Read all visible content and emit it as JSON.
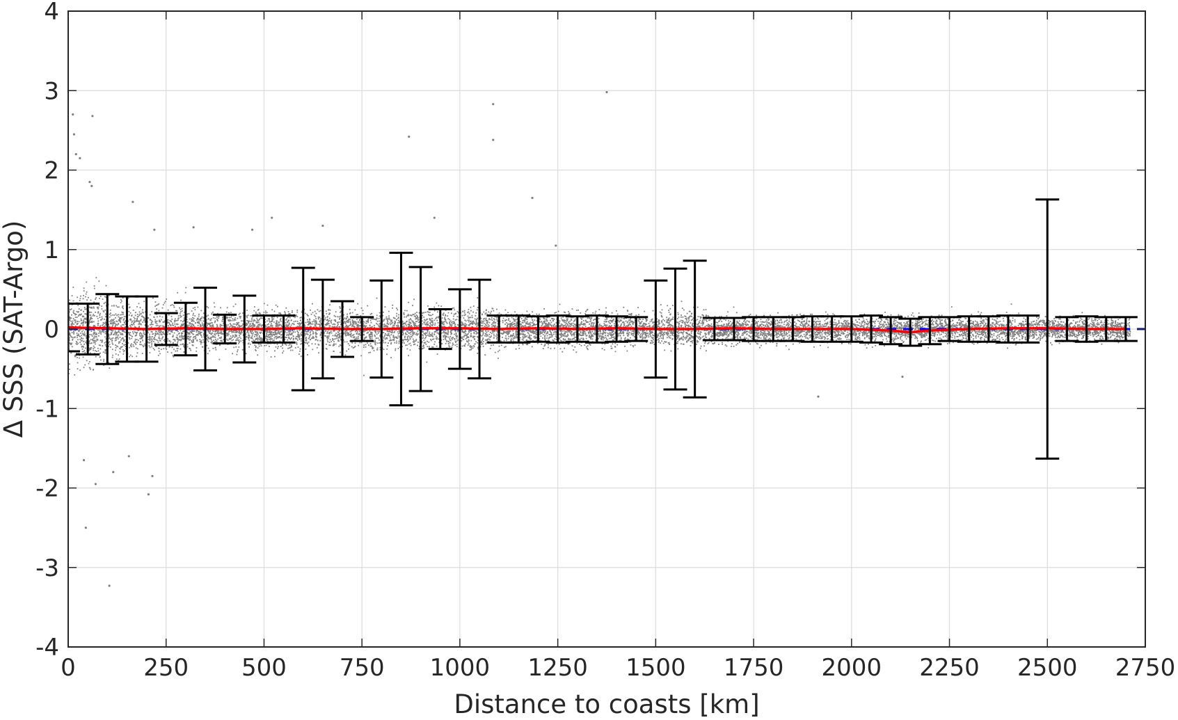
{
  "chart_data": {
    "type": "scatter",
    "title": "",
    "xlabel": "Distance to coasts [km]",
    "ylabel": "Δ SSS (SAT-Argo)",
    "xlim": [
      0,
      2750
    ],
    "ylim": [
      -4,
      4
    ],
    "xticks": [
      0,
      250,
      500,
      750,
      1000,
      1250,
      1500,
      1750,
      2000,
      2250,
      2500,
      2750
    ],
    "yticks": [
      -4,
      -3,
      -2,
      -1,
      0,
      1,
      2,
      3,
      4
    ],
    "xtick_labels": [
      "0",
      "250",
      "500",
      "750",
      "1000",
      "1250",
      "1500",
      "1750",
      "2000",
      "2250",
      "2500",
      "2750"
    ],
    "ytick_labels": [
      "-4",
      "-3",
      "-2",
      "-1",
      "0",
      "1",
      "2",
      "3",
      "4"
    ],
    "grid": true,
    "legend": "none",
    "colors": {
      "scatter": "#808080",
      "mean_line": "#ff0000",
      "zero_line": "#0000ff",
      "error_bars": "#000000"
    },
    "scatter_summary": {
      "note_points": "dense cloud of individual matchups around zero, spread largest near the coast",
      "outliers": [
        {
          "x": 12,
          "y": 2.7
        },
        {
          "x": 15,
          "y": 2.45
        },
        {
          "x": 20,
          "y": 2.2
        },
        {
          "x": 30,
          "y": 2.15
        },
        {
          "x": 62,
          "y": 2.68
        },
        {
          "x": 55,
          "y": 1.85
        },
        {
          "x": 60,
          "y": 1.8
        },
        {
          "x": 165,
          "y": 1.6
        },
        {
          "x": 220,
          "y": 1.25
        },
        {
          "x": 320,
          "y": 1.28
        },
        {
          "x": 470,
          "y": 1.25
        },
        {
          "x": 520,
          "y": 1.4
        },
        {
          "x": 650,
          "y": 1.3
        },
        {
          "x": 870,
          "y": 2.42
        },
        {
          "x": 935,
          "y": 1.4
        },
        {
          "x": 1085,
          "y": 2.83
        },
        {
          "x": 1085,
          "y": 2.38
        },
        {
          "x": 1185,
          "y": 1.65
        },
        {
          "x": 1245,
          "y": 1.05
        },
        {
          "x": 1375,
          "y": 2.98
        },
        {
          "x": 45,
          "y": -2.5
        },
        {
          "x": 70,
          "y": -1.95
        },
        {
          "x": 105,
          "y": -3.23
        },
        {
          "x": 115,
          "y": -1.8
        },
        {
          "x": 205,
          "y": -2.08
        },
        {
          "x": 215,
          "y": -1.85
        },
        {
          "x": 40,
          "y": -1.65
        },
        {
          "x": 155,
          "y": -1.6
        },
        {
          "x": 1915,
          "y": -0.85
        },
        {
          "x": 2130,
          "y": -0.6
        }
      ]
    },
    "series": [
      {
        "type": "mean_line",
        "x": [
          0,
          100,
          200,
          300,
          400,
          500,
          600,
          700,
          800,
          900,
          1000,
          1100,
          1200,
          1300,
          1400,
          1500,
          1600,
          1700,
          1800,
          1900,
          2000,
          2100,
          2150,
          2200,
          2300,
          2400,
          2500,
          2600,
          2700
        ],
        "values": [
          0.02,
          0.01,
          0.0,
          0.01,
          0.0,
          0.0,
          0.01,
          0.0,
          0.0,
          0.01,
          0.01,
          0.0,
          0.01,
          0.0,
          0.01,
          0.0,
          0.0,
          0.01,
          0.0,
          0.0,
          0.0,
          -0.02,
          -0.04,
          -0.02,
          0.0,
          0.01,
          0.01,
          0.0,
          0.0
        ]
      }
    ],
    "error_bars": {
      "x": [
        0,
        50,
        100,
        150,
        200,
        250,
        300,
        350,
        400,
        450,
        500,
        550,
        600,
        650,
        700,
        750,
        800,
        850,
        900,
        950,
        1000,
        1050,
        1100,
        1150,
        1200,
        1250,
        1300,
        1350,
        1400,
        1450,
        1500,
        1550,
        1600,
        1650,
        1700,
        1750,
        1800,
        1850,
        1900,
        1950,
        2000,
        2050,
        2100,
        2150,
        2200,
        2250,
        2300,
        2350,
        2400,
        2450,
        2500,
        2550,
        2600,
        2650,
        2700
      ],
      "mean": [
        0.02,
        0.0,
        0.0,
        0.0,
        0.0,
        0.0,
        0.0,
        0.0,
        0.0,
        0.0,
        0.0,
        0.0,
        0.0,
        0.0,
        0.0,
        0.0,
        0.0,
        0.0,
        0.0,
        0.0,
        0.0,
        0.0,
        0.0,
        0.0,
        0.0,
        0.0,
        0.0,
        0.0,
        0.0,
        0.0,
        0.0,
        0.0,
        0.0,
        0.0,
        0.0,
        0.0,
        0.0,
        0.0,
        0.0,
        0.0,
        0.0,
        0.0,
        -0.02,
        -0.04,
        -0.02,
        0.0,
        0.0,
        0.0,
        0.0,
        0.0,
        0.0,
        0.0,
        0.0,
        0.0,
        0.0
      ],
      "err": [
        0.3,
        0.32,
        0.44,
        0.41,
        0.41,
        0.2,
        0.33,
        0.52,
        0.18,
        0.42,
        0.17,
        0.17,
        0.77,
        0.62,
        0.35,
        0.15,
        0.61,
        0.96,
        0.78,
        0.25,
        0.5,
        0.62,
        0.17,
        0.17,
        0.16,
        0.17,
        0.16,
        0.17,
        0.16,
        0.15,
        0.61,
        0.76,
        0.86,
        0.14,
        0.14,
        0.15,
        0.15,
        0.15,
        0.16,
        0.16,
        0.16,
        0.17,
        0.17,
        0.17,
        0.17,
        0.15,
        0.16,
        0.16,
        0.17,
        0.17,
        1.63,
        0.15,
        0.16,
        0.15,
        0.15
      ]
    }
  }
}
